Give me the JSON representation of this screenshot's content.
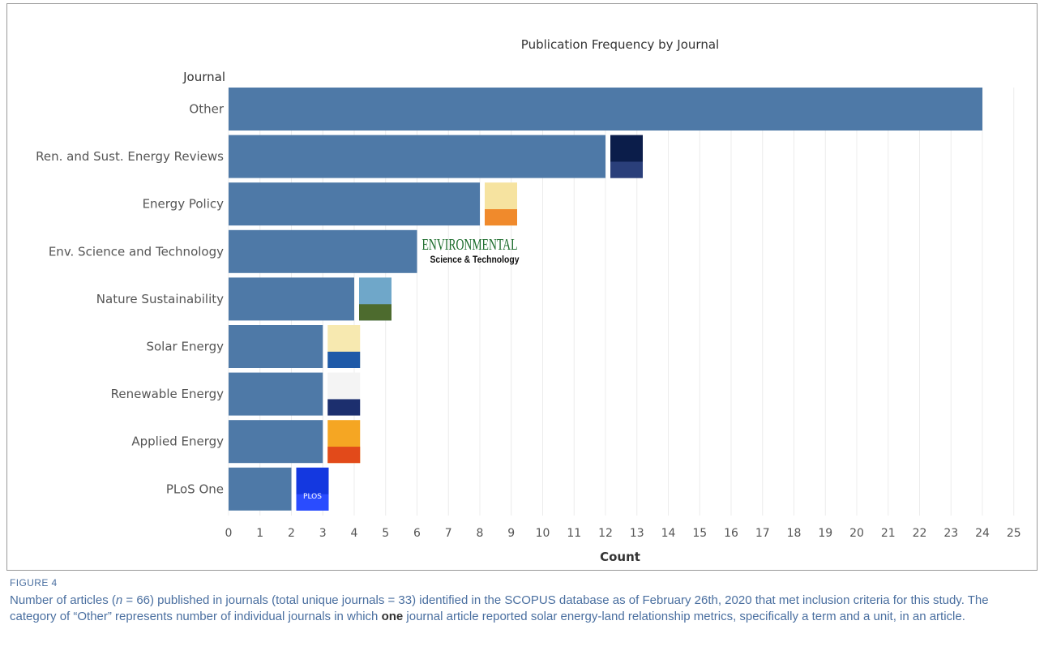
{
  "chart_data": {
    "type": "bar",
    "orientation": "horizontal",
    "title": "Publication Frequency by Journal",
    "ylabel": "Journal",
    "xlabel": "Count",
    "categories": [
      "Other",
      "Ren. and Sust. Energy Reviews",
      "Energy Policy",
      "Env. Science and Technology",
      "Nature Sustainability",
      "Solar Energy",
      "Renewable Energy",
      "Applied Energy",
      "PLoS One"
    ],
    "values": [
      24,
      12,
      8,
      6,
      4,
      3,
      3,
      3,
      2
    ],
    "xlim": [
      0,
      25
    ],
    "xticks": [
      "0",
      "1",
      "2",
      "3",
      "4",
      "5",
      "6",
      "7",
      "8",
      "9",
      "10",
      "11",
      "12",
      "13",
      "14",
      "15",
      "16",
      "17",
      "18",
      "19",
      "20",
      "21",
      "22",
      "23",
      "24",
      "25"
    ],
    "bar_color": "#4e79a7",
    "grid": "vertical"
  },
  "cover_images": [
    {
      "for": "Ren. and Sust. Energy Reviews",
      "icon": "journal-cover-icon",
      "colors": [
        "#0b1d4a",
        "#2a3f7a"
      ]
    },
    {
      "for": "Energy Policy",
      "icon": "journal-cover-icon",
      "colors": [
        "#f6e3a0",
        "#f08a2c"
      ]
    },
    {
      "for": "Env. Science and Technology",
      "icon": "journal-logo-icon",
      "colors": [
        "#1a6b2a",
        "#111111"
      ]
    },
    {
      "for": "Nature Sustainability",
      "icon": "journal-cover-icon",
      "colors": [
        "#6fa7c9",
        "#4d6b2e"
      ]
    },
    {
      "for": "Solar Energy",
      "icon": "journal-cover-icon",
      "colors": [
        "#f7e9b0",
        "#1f5aa8"
      ]
    },
    {
      "for": "Renewable Energy",
      "icon": "journal-cover-icon",
      "colors": [
        "#f4f4f4",
        "#1c2f6e"
      ]
    },
    {
      "for": "Applied Energy",
      "icon": "journal-cover-icon",
      "colors": [
        "#f5a623",
        "#e24a1a"
      ]
    },
    {
      "for": "PLoS One",
      "icon": "journal-cover-icon",
      "colors": [
        "#1438e0",
        "#2a4cff"
      ]
    }
  ],
  "logo_text": {
    "env_sci_tech_line1": "ENVIRONMENTAL",
    "env_sci_tech_line2": "Science & Technology",
    "plos": "PLOS"
  },
  "caption": {
    "label": "FIGURE 4",
    "text_1": "Number of articles (",
    "n_var": "n",
    "text_2": " = 66) published in journals (total unique journals = 33) identified in the SCOPUS database as of February 26th, 2020 that met inclusion criteria for this study. The category of “Other” represents number of individual journals in which ",
    "bold": "one",
    "text_3": " journal article reported solar energy-land relationship metrics, specifically a term and a unit, in an article."
  }
}
